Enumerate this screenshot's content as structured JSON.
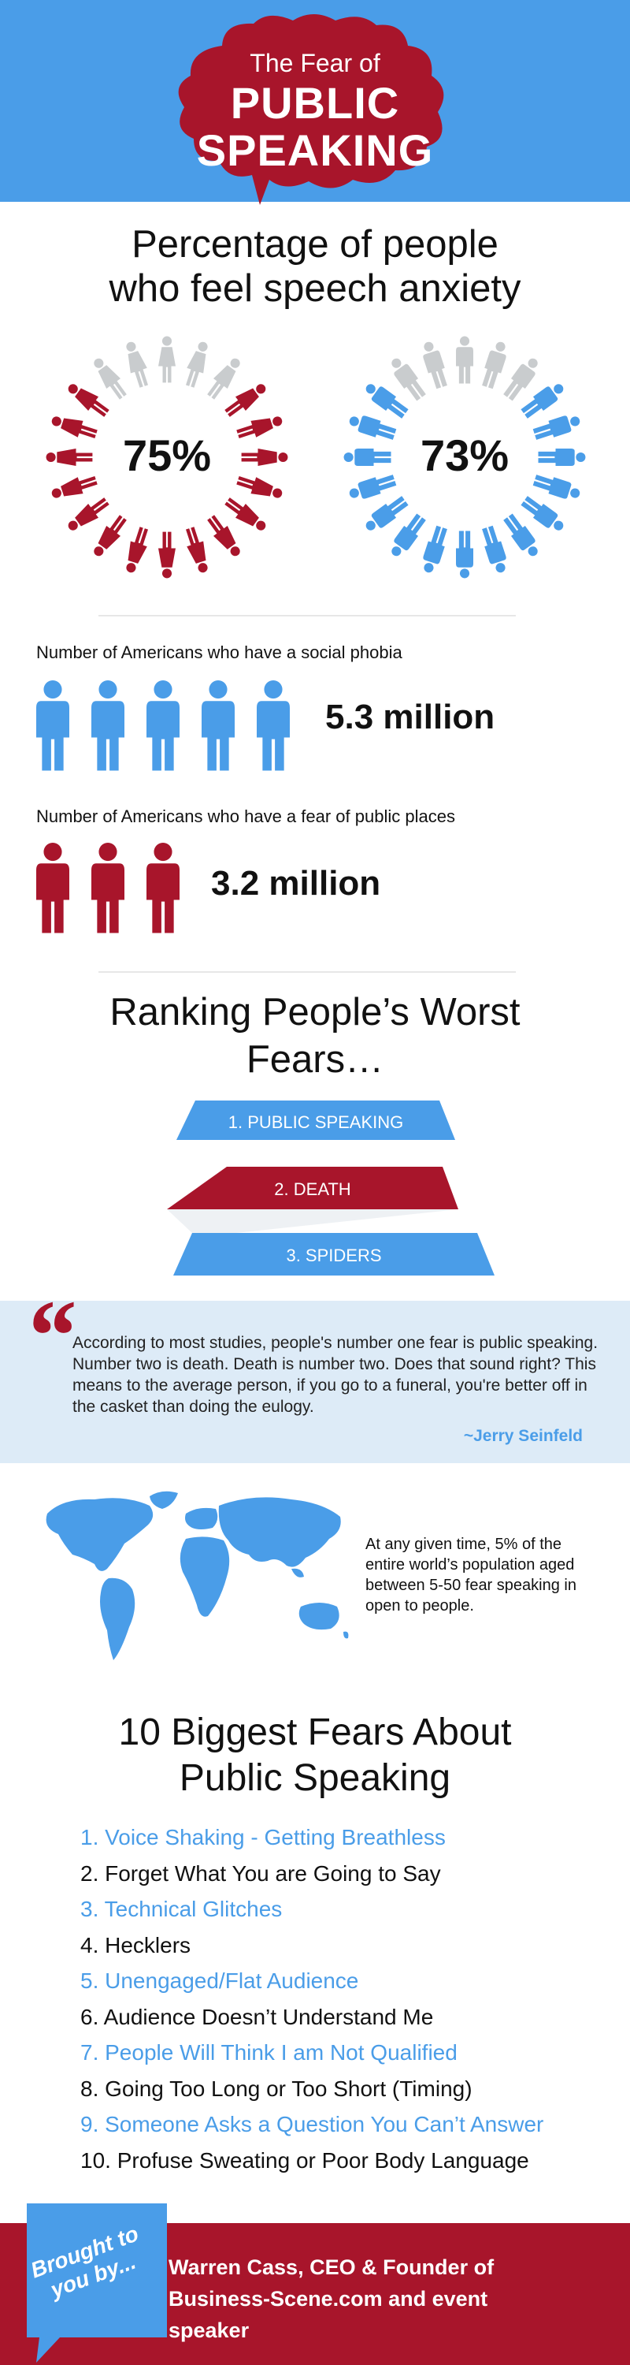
{
  "colors": {
    "blue": "#4a9de8",
    "red": "#a8152b",
    "gray": "#c9ccce",
    "band": "#ddebf7"
  },
  "header": {
    "line1": "The Fear of",
    "line2": "PUBLIC",
    "line3": "SPEAKING"
  },
  "anxiety": {
    "title_line1": "Percentage of people",
    "title_line2": "who feel speech anxiety",
    "women_pct": "75%",
    "men_pct": "73%",
    "women_fill": 0.75,
    "men_fill": 0.73
  },
  "social": {
    "label": "Number of Americans who have a social phobia",
    "value": "5.3 million"
  },
  "places": {
    "label": "Number of Americans who have a fear of public places",
    "value": "3.2 million"
  },
  "ranking": {
    "title_line1": "Ranking People’s Worst",
    "title_line2": "Fears…",
    "items": [
      "1. PUBLIC SPEAKING",
      "2. DEATH",
      "3. SPIDERS"
    ]
  },
  "quote": {
    "text": "According to most studies, people's number one fear is public speaking. Number two is death. Death is number two. Does that sound right? This means to the average person, if you go to a funeral, you're better off in the casket than doing the eulogy.",
    "author": "~Jerry Seinfeld"
  },
  "map": {
    "text": "At any given time, 5% of the entire world’s population aged between 5-50 fear speaking in open to people."
  },
  "fears": {
    "title_line1": "10 Biggest Fears About",
    "title_line2": "Public Speaking",
    "items": [
      "1. Voice Shaking - Getting Breathless",
      "2. Forget What You are Going to Say",
      "3. Technical Glitches",
      "4. Hecklers",
      "5. Unengaged/Flat Audience",
      "6. Audience Doesn’t Understand Me",
      "7. People Will Think I am Not Qualified",
      "8. Going Too Long or Too Short (Timing)",
      "9. Someone Asks a Question You Can’t Answer",
      "10. Profuse Sweating or Poor Body Language"
    ]
  },
  "footer": {
    "badge": "Brought to you by...",
    "credit": "Warren Cass, CEO & Founder of Business-Scene.com and event speaker"
  }
}
